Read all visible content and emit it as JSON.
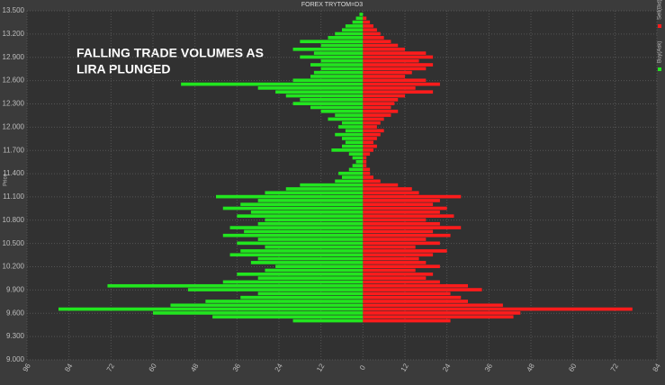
{
  "chart_data": {
    "type": "bar",
    "orientation": "horizontal",
    "title": "FOREX TRYTOM=D3",
    "annotation": [
      "FALLING TRADE VOLUMES  AS",
      "LIRA PLUNGED"
    ],
    "y_label": "Price",
    "y": [
      9.5,
      9.55,
      9.6,
      9.65,
      9.7,
      9.75,
      9.8,
      9.85,
      9.9,
      9.95,
      10.0,
      10.05,
      10.1,
      10.15,
      10.2,
      10.25,
      10.3,
      10.35,
      10.4,
      10.45,
      10.5,
      10.55,
      10.6,
      10.65,
      10.7,
      10.75,
      10.8,
      10.85,
      10.9,
      10.95,
      11.0,
      11.05,
      11.1,
      11.15,
      11.2,
      11.25,
      11.3,
      11.35,
      11.4,
      11.45,
      11.5,
      11.55,
      11.6,
      11.65,
      11.7,
      11.75,
      11.8,
      11.85,
      11.9,
      11.95,
      12.0,
      12.05,
      12.1,
      12.15,
      12.2,
      12.25,
      12.3,
      12.35,
      12.4,
      12.45,
      12.5,
      12.55,
      12.6,
      12.65,
      12.7,
      12.75,
      12.8,
      12.85,
      12.9,
      12.95,
      13.0,
      13.05,
      13.1,
      13.15,
      13.2,
      13.25,
      13.3,
      13.35,
      13.4,
      13.45
    ],
    "series": [
      {
        "name": "Buy(Ask)",
        "color": "#22e51f",
        "values": [
          -20,
          -43,
          -60,
          -87,
          -55,
          -45,
          -35,
          -30,
          -50,
          -73,
          -40,
          -30,
          -36,
          -28,
          -25,
          -32,
          -30,
          -38,
          -35,
          -28,
          -36,
          -30,
          -40,
          -34,
          -38,
          -30,
          -28,
          -36,
          -32,
          -40,
          -35,
          -30,
          -42,
          -28,
          -22,
          -18,
          -8,
          -6,
          -7,
          -4,
          -3,
          -2,
          -3,
          -4,
          -9,
          -6,
          -5,
          -6,
          -8,
          -5,
          -7,
          -6,
          -10,
          -8,
          -12,
          -15,
          -20,
          -18,
          -22,
          -25,
          -30,
          -52,
          -20,
          -15,
          -14,
          -12,
          -15,
          -12,
          -18,
          -14,
          -20,
          -12,
          -18,
          -10,
          -8,
          -6,
          -5,
          -3,
          -2,
          -1
        ]
      },
      {
        "name": "Sell(Bid)",
        "color": "#ff1c1c",
        "values": [
          25,
          43,
          45,
          77,
          40,
          30,
          28,
          25,
          34,
          30,
          22,
          18,
          20,
          15,
          22,
          18,
          16,
          20,
          24,
          15,
          22,
          18,
          25,
          20,
          28,
          22,
          18,
          26,
          22,
          24,
          20,
          22,
          28,
          16,
          14,
          10,
          5,
          3,
          2,
          2,
          1,
          1,
          1,
          2,
          3,
          4,
          3,
          4,
          5,
          6,
          4,
          5,
          6,
          8,
          10,
          8,
          9,
          10,
          12,
          20,
          15,
          22,
          18,
          12,
          14,
          18,
          20,
          16,
          20,
          18,
          12,
          10,
          8,
          6,
          5,
          4,
          3,
          2,
          1,
          0
        ]
      }
    ],
    "xlim": [
      -96,
      84
    ],
    "xticks": [
      {
        "value": -96,
        "label": "96"
      },
      {
        "value": -84,
        "label": "84"
      },
      {
        "value": -72,
        "label": "72"
      },
      {
        "value": -60,
        "label": "60"
      },
      {
        "value": -48,
        "label": "48"
      },
      {
        "value": -36,
        "label": "36"
      },
      {
        "value": -24,
        "label": "24"
      },
      {
        "value": -12,
        "label": "12"
      },
      0,
      12,
      24,
      36,
      48,
      60,
      72,
      84
    ],
    "ylim": [
      9.0,
      13.5
    ],
    "yticks": [
      {
        "value": 9.0,
        "label": "9.000"
      },
      {
        "value": 9.3,
        "label": "9.300"
      },
      {
        "value": 9.6,
        "label": "9.600"
      },
      {
        "value": 9.9,
        "label": "9.900"
      },
      {
        "value": 10.2,
        "label": "10.200"
      },
      {
        "value": 10.5,
        "label": "10.500"
      },
      {
        "value": 10.8,
        "label": "10.800"
      },
      {
        "value": 11.1,
        "label": "11.100"
      },
      {
        "value": 11.4,
        "label": "11.400"
      },
      {
        "value": 11.7,
        "label": "11.700"
      },
      {
        "value": 12.0,
        "label": "12.000"
      },
      {
        "value": 12.3,
        "label": "12.300"
      },
      {
        "value": 12.6,
        "label": "12.600"
      },
      {
        "value": 12.9,
        "label": "12.900"
      },
      {
        "value": 13.2,
        "label": "13.200"
      },
      {
        "value": 13.5,
        "label": "13.500"
      }
    ],
    "grid": true
  }
}
